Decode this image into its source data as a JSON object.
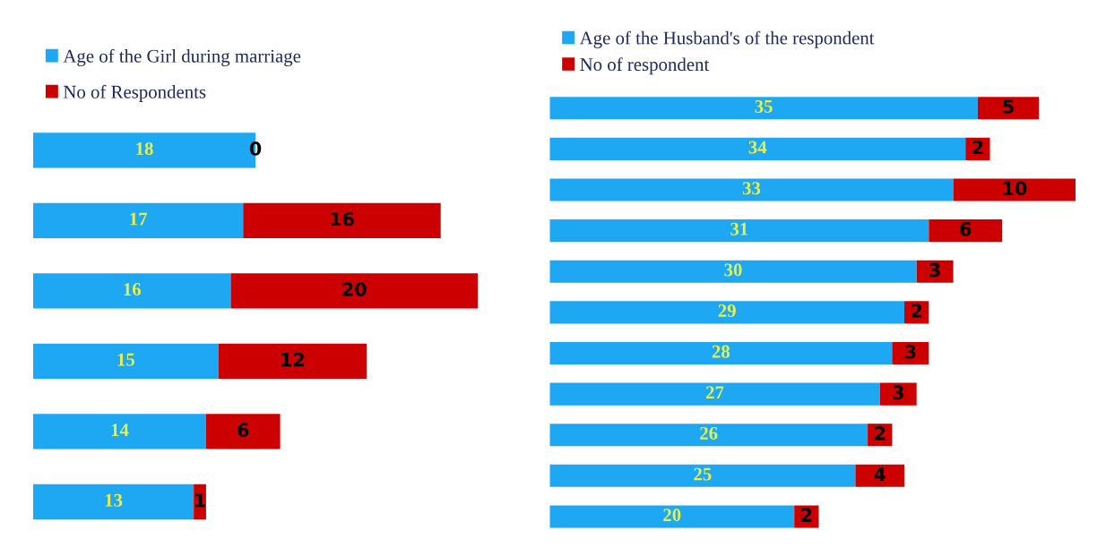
{
  "chart_data": [
    {
      "type": "bar",
      "orientation": "horizontal",
      "stacked": true,
      "data_labels": true,
      "legend": "top left",
      "grid": false,
      "categories": [
        null,
        null,
        null,
        null,
        null,
        null
      ],
      "series": [
        {
          "name": "Age of the Girl during marriage",
          "color": "#1ea7f2",
          "values": [
            18,
            17,
            16,
            15,
            14,
            13
          ]
        },
        {
          "name": "No of Respondents",
          "color": "#cc0000",
          "values": [
            0,
            16,
            20,
            12,
            6,
            1
          ]
        }
      ]
    },
    {
      "type": "bar",
      "orientation": "horizontal",
      "stacked": true,
      "data_labels": true,
      "legend": "top left",
      "grid": false,
      "categories": [
        null,
        null,
        null,
        null,
        null,
        null,
        null,
        null,
        null,
        null,
        null
      ],
      "series": [
        {
          "name": "Age of the Husband's of the respondent",
          "color": "#1ea7f2",
          "values": [
            35,
            34,
            33,
            31,
            30,
            29,
            28,
            27,
            26,
            25,
            20
          ]
        },
        {
          "name": "No of respondent",
          "color": "#cc0000",
          "values": [
            5,
            2,
            10,
            6,
            3,
            2,
            3,
            3,
            2,
            4,
            2
          ]
        }
      ]
    }
  ]
}
